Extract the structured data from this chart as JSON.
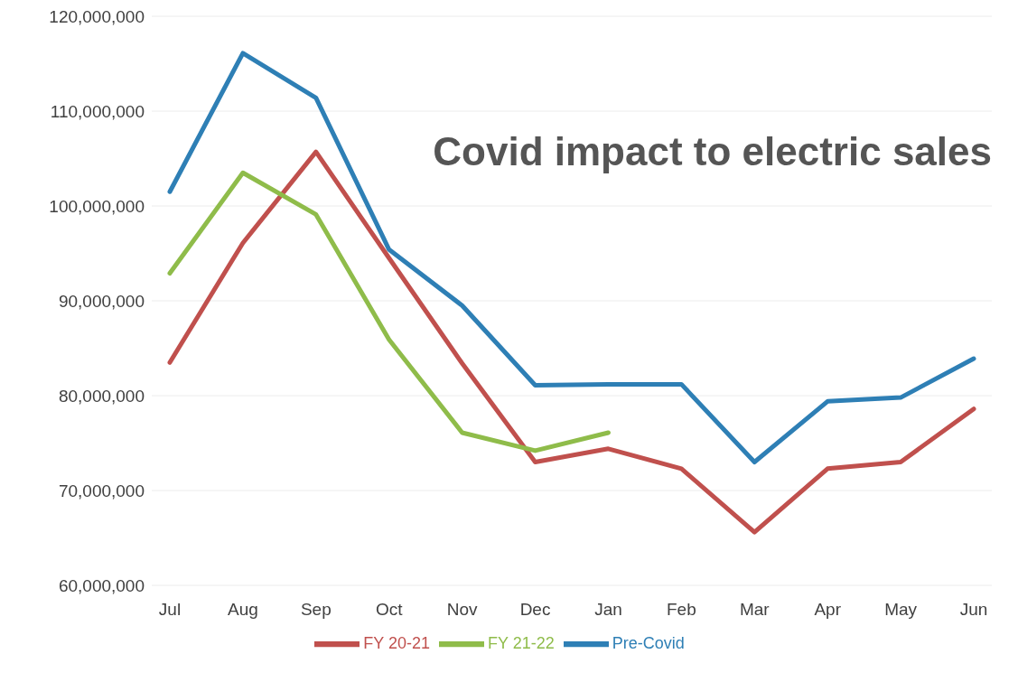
{
  "chart_data": {
    "type": "line",
    "title": "Covid impact to electric sales",
    "categories": [
      "Jul",
      "Aug",
      "Sep",
      "Oct",
      "Nov",
      "Dec",
      "Jan",
      "Feb",
      "Mar",
      "Apr",
      "May",
      "Jun"
    ],
    "series": [
      {
        "name": "Pre-Covid",
        "color": "#2e7fb5",
        "values": [
          101500000,
          116100000,
          111400000,
          95400000,
          89500000,
          81100000,
          81200000,
          81200000,
          73000000,
          79400000,
          79800000,
          83900000
        ]
      },
      {
        "name": "FY 20-21",
        "color": "#c0504d",
        "values": [
          83500000,
          96100000,
          105700000,
          94500000,
          83400000,
          73000000,
          74400000,
          72300000,
          65600000,
          72300000,
          73000000,
          78600000
        ]
      },
      {
        "name": "FY 21-22",
        "color": "#8fbc4a",
        "values": [
          92900000,
          103500000,
          99100000,
          85900000,
          76100000,
          74200000,
          76100000,
          null,
          null,
          null,
          null,
          null
        ]
      }
    ],
    "ylim": [
      60000000,
      120000000
    ],
    "yticks": [
      {
        "value": 60000000,
        "label": "60,000,000"
      },
      {
        "value": 70000000,
        "label": "70,000,000"
      },
      {
        "value": 80000000,
        "label": "80,000,000"
      },
      {
        "value": 90000000,
        "label": "90,000,000"
      },
      {
        "value": 100000000,
        "label": "100,000,000"
      },
      {
        "value": 110000000,
        "label": "110,000,000"
      },
      {
        "value": 120000000,
        "label": "120,000,000"
      }
    ],
    "grid": "y",
    "legend": "bottom",
    "marker": "none",
    "line_style": "solid"
  }
}
